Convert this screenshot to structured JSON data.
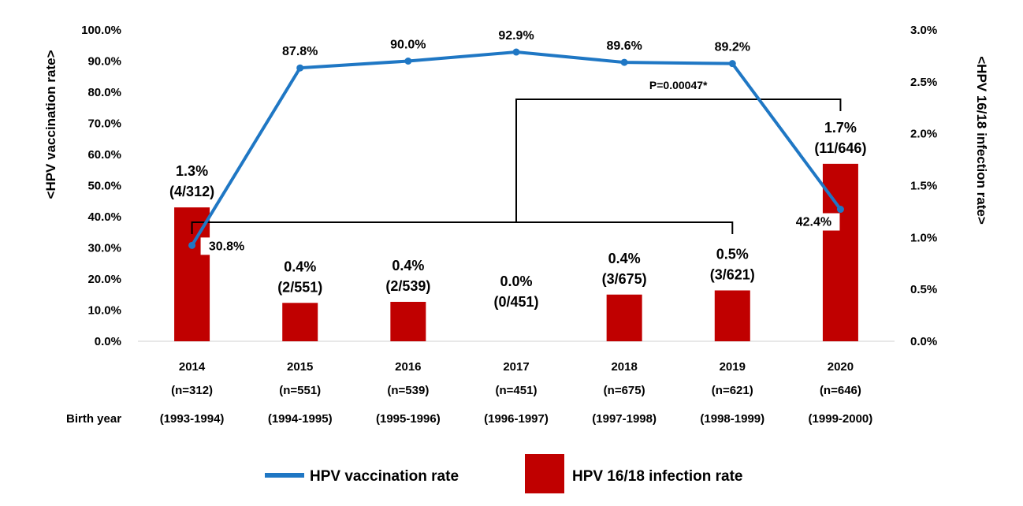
{
  "chart_data": {
    "type": "bar",
    "categories": [
      "2014",
      "2015",
      "2016",
      "2017",
      "2018",
      "2019",
      "2020"
    ],
    "category_n": [
      "(n=312)",
      "(n=551)",
      "(n=539)",
      "(n=451)",
      "(n=675)",
      "(n=621)",
      "(n=646)"
    ],
    "birth_years": [
      "(1993-1994)",
      "(1994-1995)",
      "(1995-1996)",
      "(1996-1997)",
      "(1997-1998)",
      "(1998-1999)",
      "(1999-2000)"
    ],
    "birth_year_label": "Birth year",
    "ylabel": "<HPV vaccination rate>",
    "y2label": "<HPV 16/18 infection rate>",
    "ylim": [
      0,
      100
    ],
    "y2lim": [
      0,
      3
    ],
    "y_ticks": [
      "0.0%",
      "10.0%",
      "20.0%",
      "30.0%",
      "40.0%",
      "50.0%",
      "60.0%",
      "70.0%",
      "80.0%",
      "90.0%",
      "100.0%"
    ],
    "y2_ticks": [
      "0.0%",
      "0.5%",
      "1.0%",
      "1.5%",
      "2.0%",
      "2.5%",
      "3.0%"
    ],
    "series": [
      {
        "name": "HPV vaccination rate",
        "kind": "line",
        "axis": "left",
        "color": "#1F77C4",
        "values": [
          30.8,
          87.8,
          90.0,
          92.9,
          89.6,
          89.2,
          42.4
        ],
        "labels": [
          "30.8%",
          "87.8%",
          "90.0%",
          "92.9%",
          "89.6%",
          "89.2%",
          "42.4%"
        ]
      },
      {
        "name": "HPV 16/18 infection rate",
        "kind": "bar",
        "axis": "right",
        "color": "#C00000",
        "values": [
          1.29,
          0.37,
          0.38,
          0.0,
          0.45,
          0.49,
          1.71
        ],
        "labels": [
          "1.3%",
          "0.4%",
          "0.4%",
          "0.0%",
          "0.4%",
          "0.5%",
          "1.7%"
        ],
        "counts": [
          "(4/312)",
          "(2/551)",
          "(2/539)",
          "(0/451)",
          "(3/675)",
          "(3/621)",
          "(11/646)"
        ]
      }
    ],
    "annotation": "P=0.00047*",
    "legend_placement": "bottom",
    "grid": false
  }
}
